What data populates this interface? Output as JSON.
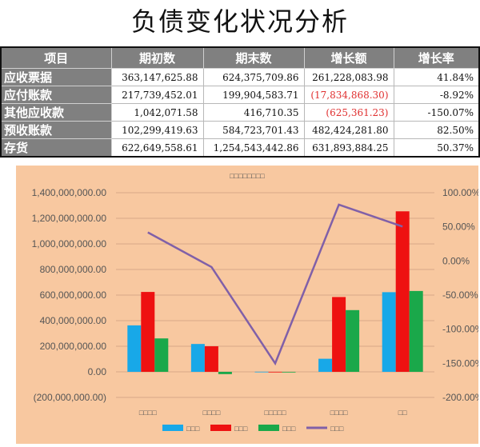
{
  "title": "负债变化状况分析",
  "table": {
    "headers": [
      "项目",
      "期初数",
      "期末数",
      "增长额",
      "增长率"
    ],
    "rows": [
      {
        "name": "应收票据",
        "start": "363,147,625.88",
        "end": "624,375,709.86",
        "growth": "261,228,083.98",
        "rate": "41.84%",
        "negative": false
      },
      {
        "name": "应付账款",
        "start": "217,739,452.01",
        "end": "199,904,583.71",
        "growth": "(17,834,868.30)",
        "rate": "-8.92%",
        "negative": true
      },
      {
        "name": "其他应收款",
        "start": "1,042,071.58",
        "end": "416,710.35",
        "growth": "(625,361.23)",
        "rate": "-150.07%",
        "negative": true
      },
      {
        "name": "预收账款",
        "start": "102,299,419.63",
        "end": "584,723,701.43",
        "growth": "482,424,281.80",
        "rate": "82.50%",
        "negative": false
      },
      {
        "name": "存货",
        "start": "622,649,558.61",
        "end": "1,254,543,442.86",
        "growth": "631,893,884.25",
        "rate": "50.37%",
        "negative": false
      }
    ]
  },
  "chart_data": {
    "type": "bar",
    "title": "",
    "categories": [
      "",
      "",
      "",
      "",
      ""
    ],
    "category_placeholders": [
      "□□□□",
      "□□□□",
      "□□□□□",
      "□□□□",
      "□□"
    ],
    "title_placeholder": "□□□□□□□□",
    "series": [
      {
        "values": [
          363147625.88,
          217739452.01,
          1042071.58,
          102299419.63,
          622649558.61
        ],
        "color": "#18a8e8",
        "legend_placeholder": "□□□"
      },
      {
        "values": [
          624375709.86,
          199904583.71,
          416710.35,
          584723701.43,
          1254543442.86
        ],
        "color": "#ee1111",
        "legend_placeholder": "□□□"
      },
      {
        "values": [
          261228083.98,
          -17834868.3,
          -625361.23,
          482424281.8,
          631893884.25
        ],
        "color": "#1aa84a",
        "legend_placeholder": "□□□"
      },
      {
        "type": "line",
        "axis": "right",
        "values": [
          41.84,
          -8.92,
          -150.07,
          82.5,
          50.37
        ],
        "color": "#8060a8",
        "legend_placeholder": "□□□"
      }
    ],
    "ylim": [
      -200000000,
      1400000000
    ],
    "yticks": [
      "(200,000,000.00)",
      "0.00",
      "200,000,000.00",
      "400,000,000.00",
      "600,000,000.00",
      "800,000,000.00",
      "1,000,000,000.00",
      "1,200,000,000.00",
      "1,400,000,000.00"
    ],
    "y2lim": [
      -200,
      100
    ],
    "y2ticks": [
      "-200.00%",
      "-150.00%",
      "-100.00%",
      "-50.00%",
      "0.00%",
      "50.00%",
      "100.00%"
    ],
    "grid": true,
    "legend": "bottom"
  }
}
